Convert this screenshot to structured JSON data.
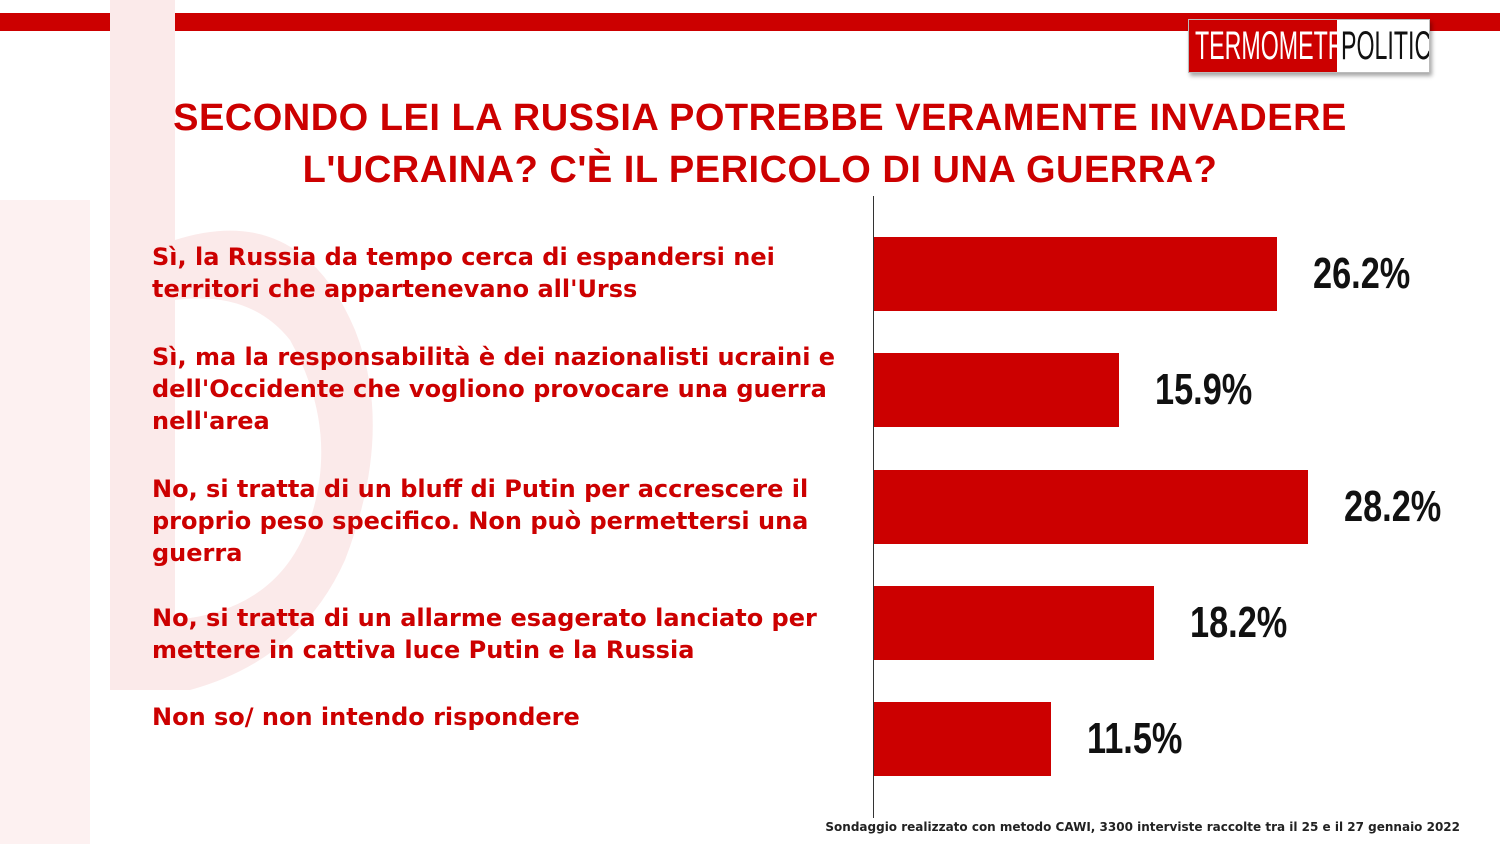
{
  "logo": {
    "part1": "TERMOMETRO",
    "part2": "POLITICO"
  },
  "chart_data": {
    "type": "bar",
    "orientation": "horizontal",
    "title": "SECONDO LEI LA RUSSIA POTREBBE VERAMENTE INVADERE L'UCRAINA? C'È IL PERICOLO DI UNA GUERRA?",
    "categories": [
      "Sì, la Russia da tempo cerca di espandersi nei territori che appartenevano all'Urss",
      "Sì, ma la responsabilità  è dei nazionalisti ucraini e dell'Occidente che vogliono provocare una guerra nell'area",
      "No, si tratta di un bluff di Putin per accrescere il proprio peso specifico. Non può permettersi una guerra",
      "No, si tratta di un allarme esagerato lanciato per mettere in cattiva luce Putin e la Russia",
      "Non so/ non intendo rispondere"
    ],
    "values": [
      26.2,
      15.9,
      28.2,
      18.2,
      11.5
    ],
    "value_labels": [
      "26.2%",
      "15.9%",
      "28.2%",
      "18.2%",
      "11.5%"
    ],
    "bar_color": "#cc0000",
    "grid": false
  },
  "footnote": "Sondaggio realizzato con metodo CAWI, 3300 interviste raccolte tra il 25 e il 27 gennaio 2022"
}
